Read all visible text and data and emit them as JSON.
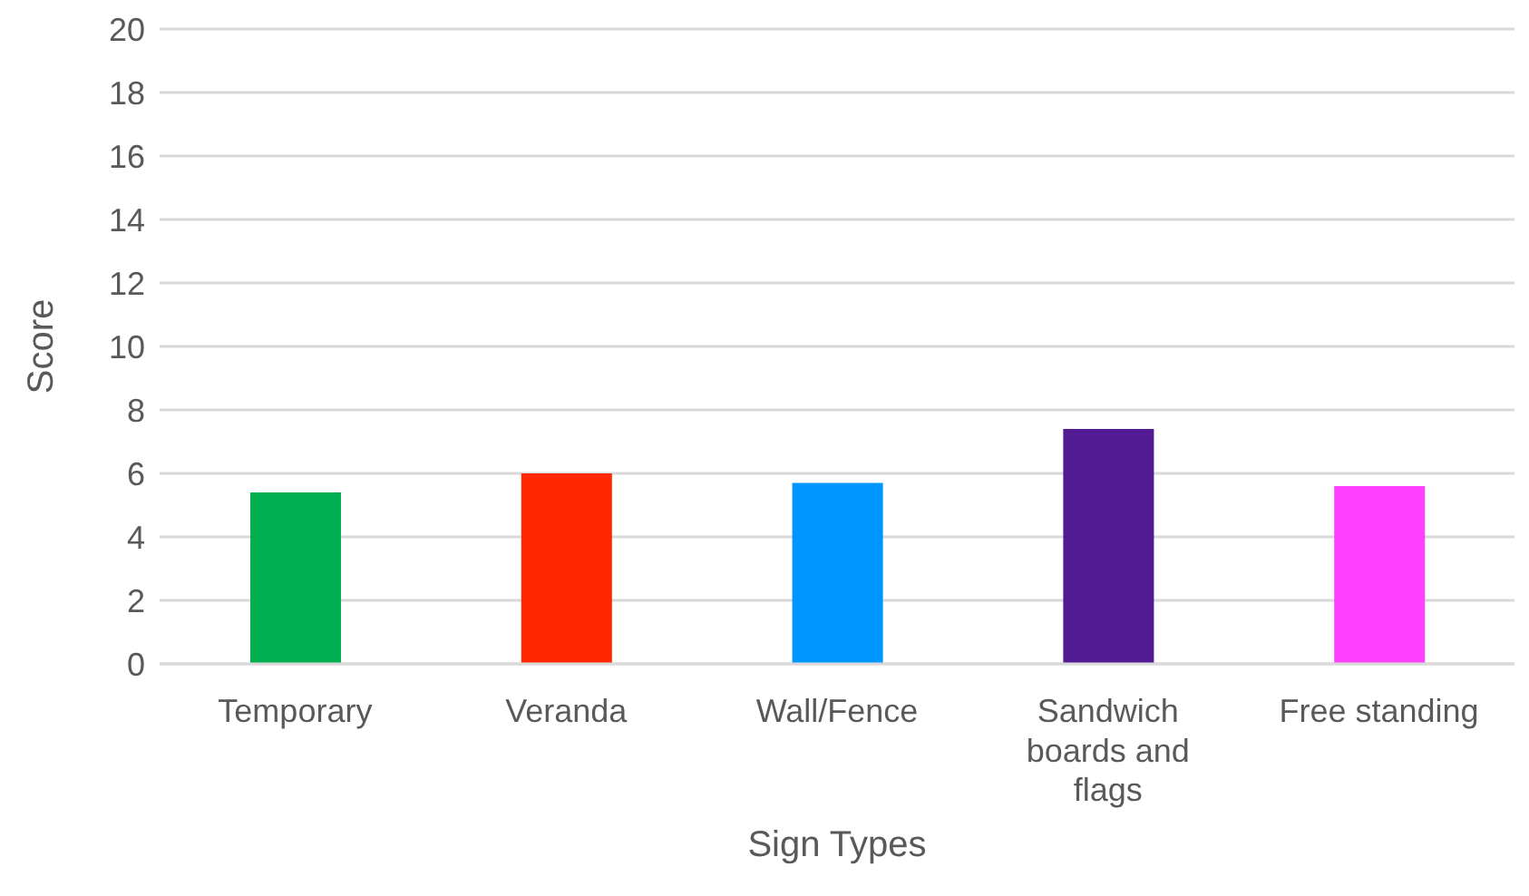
{
  "chart_data": {
    "type": "bar",
    "xlabel": "Sign Types",
    "ylabel": "Score",
    "categories": [
      "Temporary",
      "Veranda",
      "Wall/Fence",
      "Sandwich boards and flags",
      "Free standing"
    ],
    "values": [
      5.4,
      6.0,
      5.7,
      7.4,
      5.6
    ],
    "colors": [
      "#00b050",
      "#ff2600",
      "#0096ff",
      "#531b93",
      "#ff40ff"
    ],
    "ylim": [
      0,
      20
    ],
    "yticks": [
      0,
      2,
      4,
      6,
      8,
      10,
      12,
      14,
      16,
      18,
      20
    ],
    "grid": "y",
    "legend": false
  }
}
